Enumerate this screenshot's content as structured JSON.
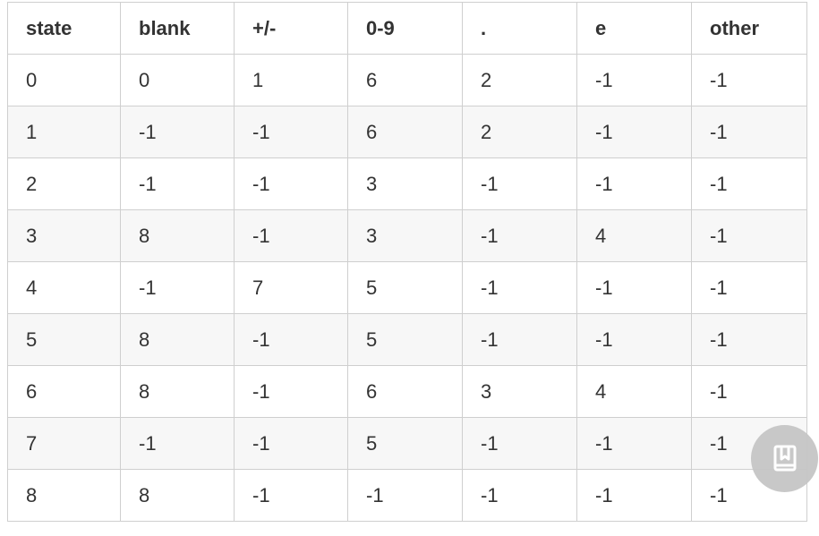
{
  "table": {
    "headers": [
      "state",
      "blank",
      "+/-",
      "0-9",
      ".",
      "e",
      "other"
    ],
    "rows": [
      [
        "0",
        "0",
        "1",
        "6",
        "2",
        "-1",
        "-1"
      ],
      [
        "1",
        "-1",
        "-1",
        "6",
        "2",
        "-1",
        "-1"
      ],
      [
        "2",
        "-1",
        "-1",
        "3",
        "-1",
        "-1",
        "-1"
      ],
      [
        "3",
        "8",
        "-1",
        "3",
        "-1",
        "4",
        "-1"
      ],
      [
        "4",
        "-1",
        "7",
        "5",
        "-1",
        "-1",
        "-1"
      ],
      [
        "5",
        "8",
        "-1",
        "5",
        "-1",
        "-1",
        "-1"
      ],
      [
        "6",
        "8",
        "-1",
        "6",
        "3",
        "4",
        "-1"
      ],
      [
        "7",
        "-1",
        "-1",
        "5",
        "-1",
        "-1",
        "-1"
      ],
      [
        "8",
        "8",
        "-1",
        "-1",
        "-1",
        "-1",
        "-1"
      ]
    ]
  },
  "floating_button": {
    "icon": "bookmark-book-icon",
    "color": "#c6c6c6"
  }
}
